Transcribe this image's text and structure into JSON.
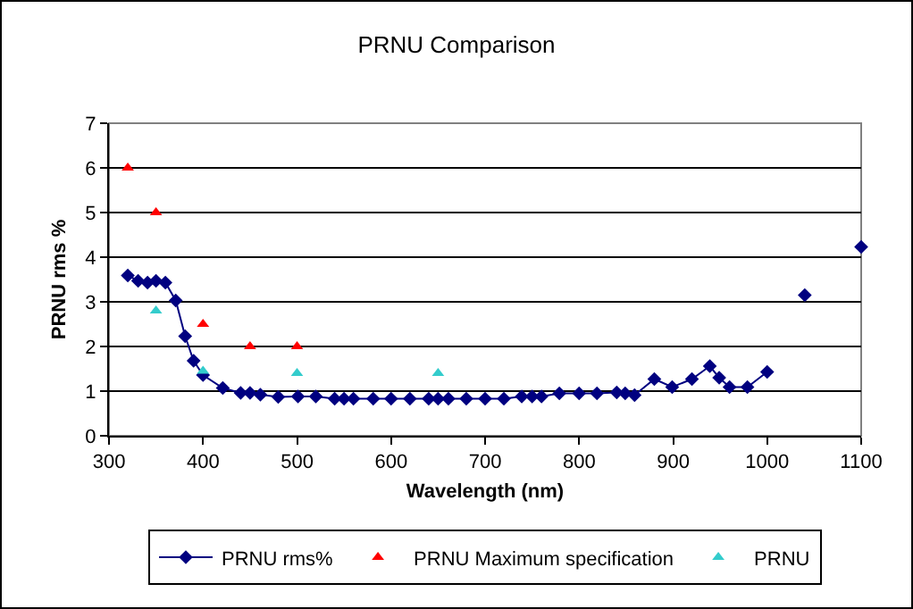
{
  "chart_data": {
    "type": "line",
    "title": "PRNU Comparison",
    "xlabel": "Wavelength (nm)",
    "ylabel": "PRNU rms %",
    "xlim": [
      300,
      1100
    ],
    "xticks": [
      300,
      400,
      500,
      600,
      700,
      800,
      900,
      1000,
      1100
    ],
    "ylim": [
      0,
      7
    ],
    "yticks": [
      0,
      1,
      2,
      3,
      4,
      5,
      6,
      7
    ],
    "grid": "y",
    "legend": "bottom",
    "series": [
      {
        "name": "PRNU rms%",
        "color": "#000080",
        "marker": "diamond",
        "line_style": "solid",
        "x": [
          320,
          331,
          341,
          350,
          360,
          371,
          381,
          390,
          400,
          421,
          440,
          450,
          461,
          480,
          501,
          520,
          540,
          550,
          560,
          581,
          600,
          620,
          640,
          650,
          661,
          680,
          700,
          720,
          739,
          750,
          760,
          779,
          800,
          819,
          840,
          849,
          859,
          880,
          899,
          920,
          939,
          949,
          960,
          979,
          1000,
          1020,
          1040,
          1070,
          1100
        ],
        "values": [
          3.59,
          3.47,
          3.43,
          3.47,
          3.43,
          3.03,
          2.23,
          1.68,
          1.36,
          1.07,
          0.96,
          0.96,
          0.92,
          0.87,
          0.88,
          0.88,
          0.83,
          0.83,
          0.83,
          0.83,
          0.83,
          0.83,
          0.83,
          0.83,
          0.83,
          0.83,
          0.83,
          0.83,
          0.88,
          0.88,
          0.88,
          0.95,
          0.95,
          0.95,
          0.97,
          0.95,
          0.91,
          1.27,
          1.09,
          1.27,
          1.56,
          1.3,
          1.09,
          1.09,
          1.43,
          null,
          3.15,
          null,
          4.23
        ]
      },
      {
        "name": "PRNU Maximum specification",
        "type": "scatter",
        "color": "#ff0000",
        "marker": "triangle",
        "x": [
          320,
          350,
          400,
          450,
          500
        ],
        "values": [
          6,
          5,
          2.5,
          2,
          2
        ]
      },
      {
        "name": "PRNU",
        "type": "scatter",
        "color": "#33cccc",
        "marker": "triangle",
        "x": [
          350,
          400,
          500,
          650
        ],
        "values": [
          2.8,
          1.45,
          1.4,
          1.4
        ]
      }
    ]
  }
}
